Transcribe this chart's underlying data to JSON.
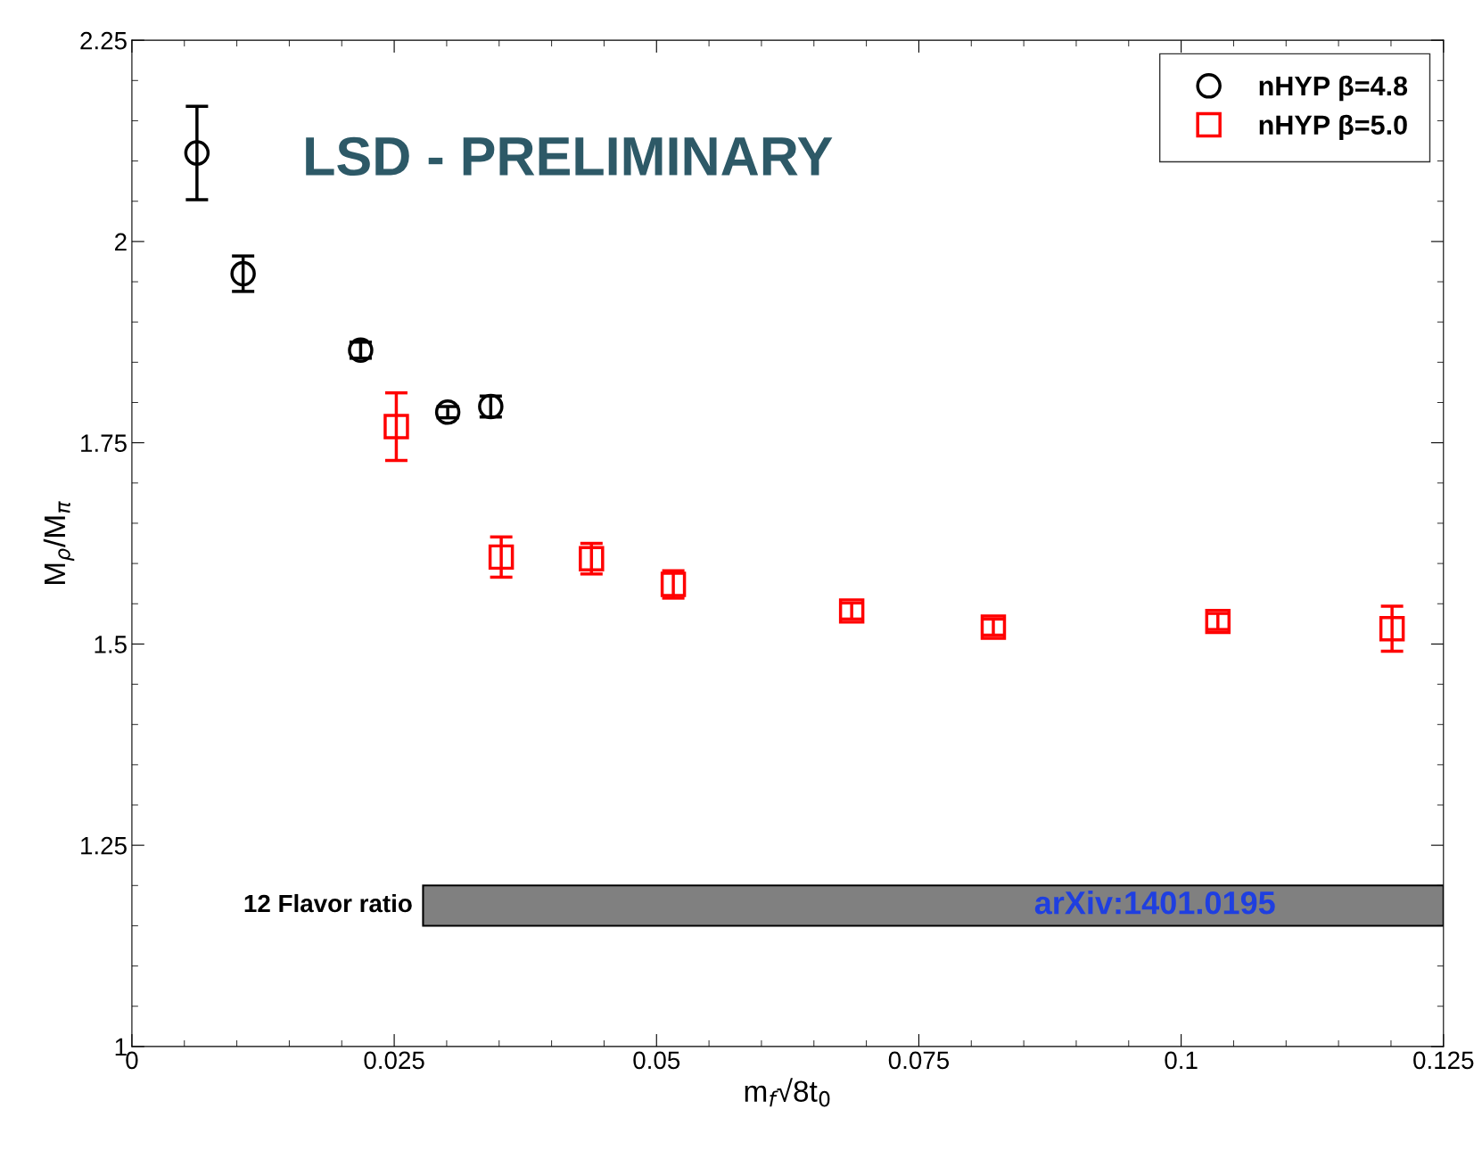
{
  "chart_data": {
    "type": "scatter",
    "xlabel": "m$_{f}$√8t$_{0}$",
    "ylabel": "M$_{ρ}$/M$_{π}$",
    "xlim": [
      0,
      0.125
    ],
    "xticks": [
      0,
      0.025,
      0.05,
      0.075,
      0.1,
      0.125
    ],
    "ylim": [
      1,
      2.25
    ],
    "yticks": [
      1,
      1.25,
      1.5,
      1.75,
      2,
      2.25
    ],
    "grid": false,
    "legend": "top right",
    "series": [
      {
        "name": "nHYP β=4.8",
        "color": "#000000",
        "marker": "circle",
        "x": [
          0.0062,
          0.0106,
          0.0218,
          0.0301,
          0.0342
        ],
        "values": [
          2.11,
          1.96,
          1.865,
          1.788,
          1.795
        ],
        "errors": [
          0.058,
          0.022,
          0.01,
          0.007,
          0.013
        ]
      },
      {
        "name": "nHYP β=5.0",
        "color": "#ff0000",
        "marker": "square",
        "x": [
          0.0252,
          0.0352,
          0.0438,
          0.0516,
          0.0686,
          0.0821,
          0.1035,
          0.1201
        ],
        "values": [
          1.77,
          1.608,
          1.606,
          1.574,
          1.541,
          1.521,
          1.528,
          1.519
        ],
        "errors": [
          0.042,
          0.025,
          0.019,
          0.017,
          0.01,
          0.01,
          0.01,
          0.028
        ]
      }
    ],
    "bands": [
      {
        "axis": "y",
        "from": 1.15,
        "to": 1.2,
        "label": "12 Flavor ratio",
        "color": "#808080"
      }
    ],
    "annotations": [
      "LSD - PRELIMINARY",
      "arXiv:1401.0195"
    ]
  }
}
